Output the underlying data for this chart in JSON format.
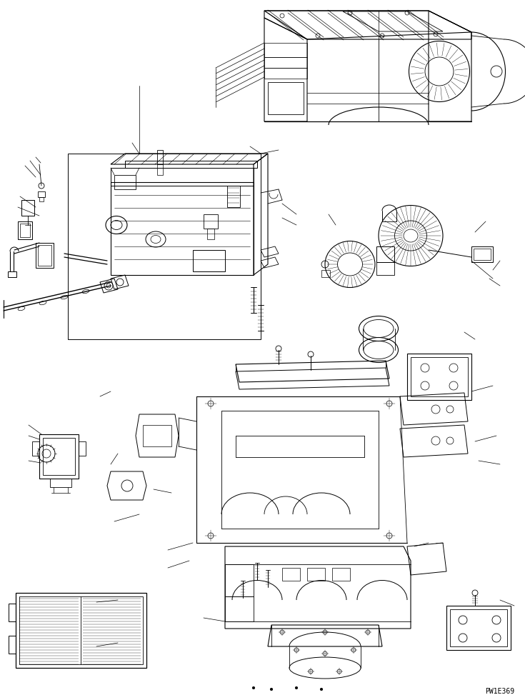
{
  "bg_color": "#ffffff",
  "line_color": "#000000",
  "watermark": "PW1E369",
  "fig_width": 7.35,
  "fig_height": 9.8,
  "dpi": 100,
  "lw": 0.6
}
